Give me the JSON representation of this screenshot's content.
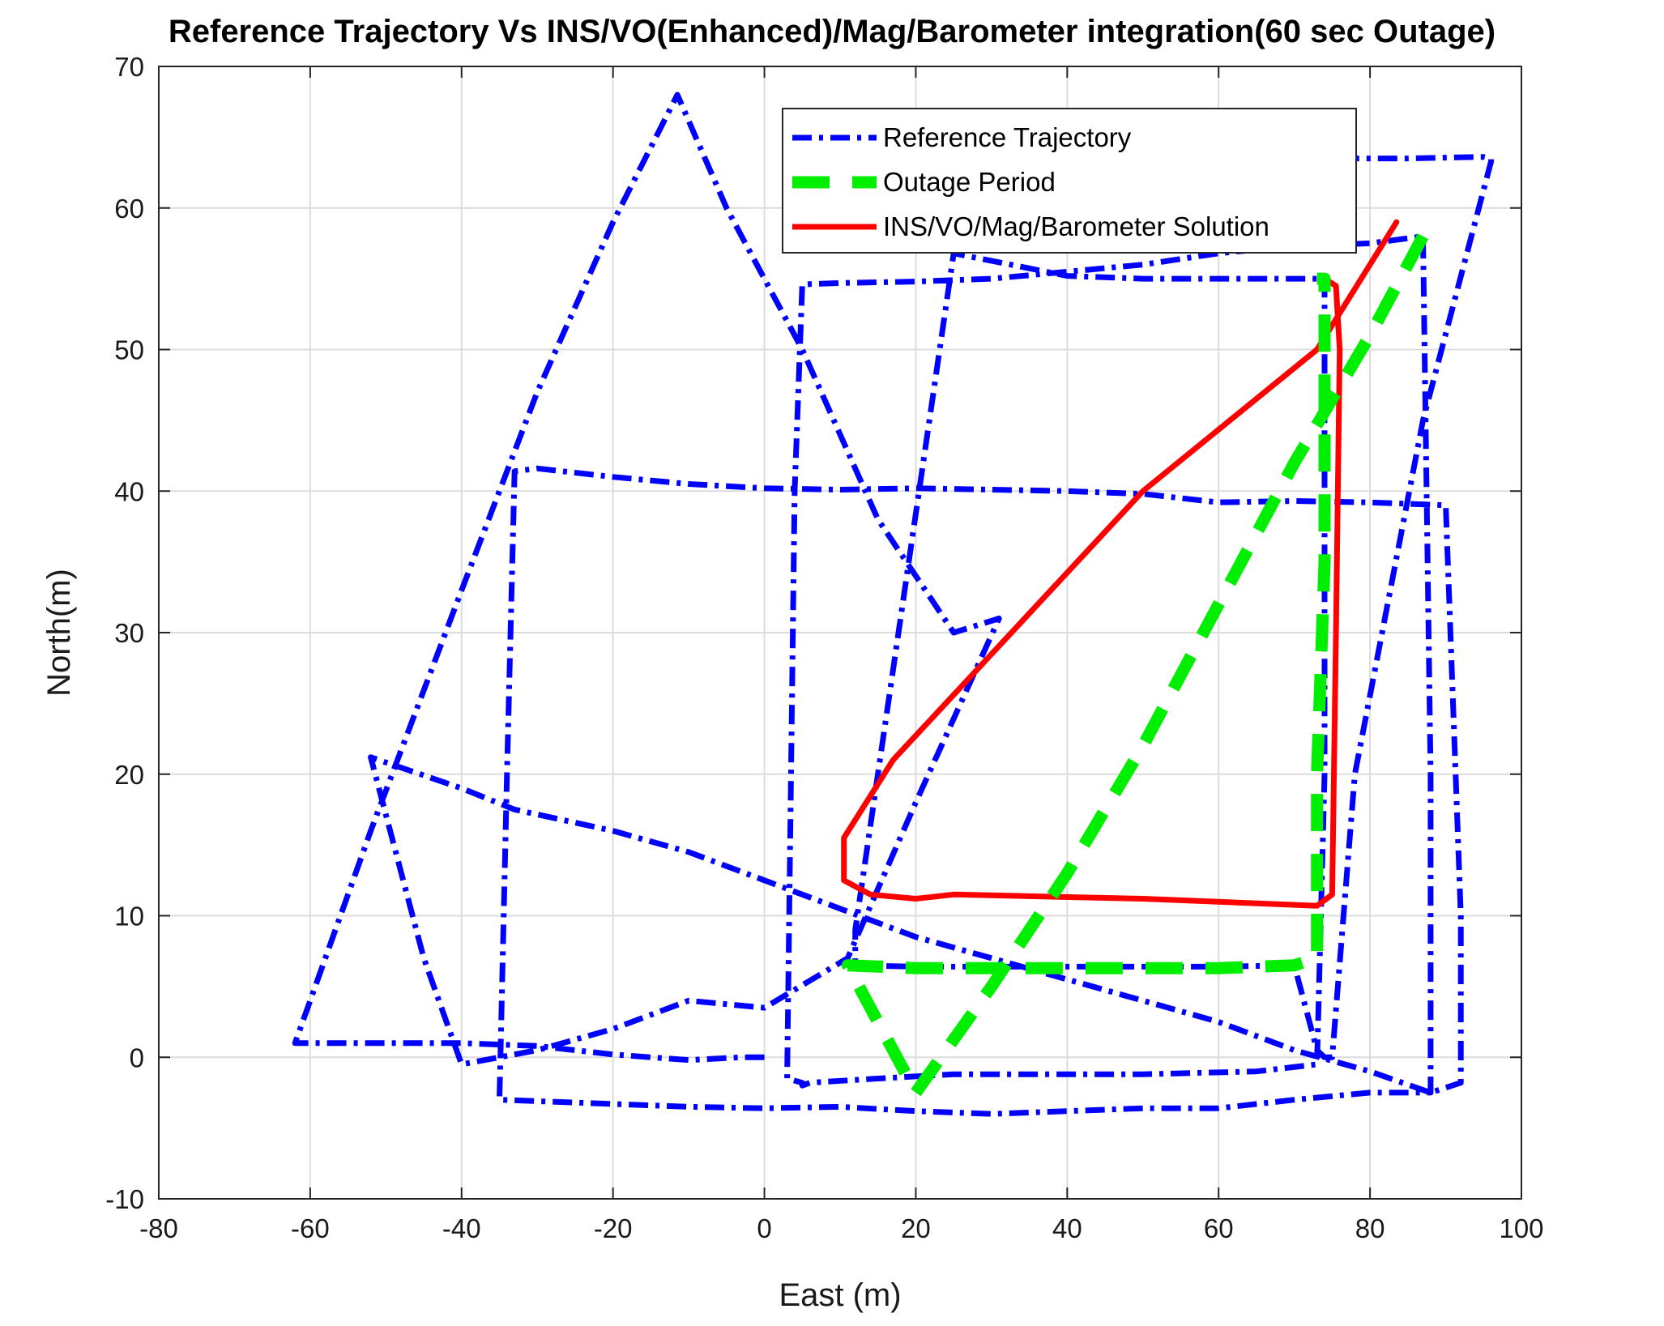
{
  "chart_data": {
    "type": "line",
    "title": "Reference Trajectory Vs INS/VO(Enhanced)/Mag/Barometer integration(60 sec Outage)",
    "xlabel": "East (m)",
    "ylabel": "North(m)",
    "xlim": [
      -80,
      100
    ],
    "ylim": [
      -10,
      70
    ],
    "xticks": [
      -80,
      -60,
      -40,
      -20,
      0,
      20,
      40,
      60,
      80,
      100
    ],
    "yticks": [
      -10,
      0,
      10,
      20,
      30,
      40,
      50,
      60,
      70
    ],
    "grid": true,
    "legend_position": "top-right",
    "series": [
      {
        "name": "Reference Trajectory",
        "color": "#0000ff",
        "style": "dash-dot",
        "x": [
          0,
          -3,
          -10,
          -20,
          -30,
          -40,
          -50,
          -62,
          -52,
          -40,
          -30,
          -20,
          -11.5,
          -5,
          5,
          15,
          25,
          31,
          20,
          11,
          0,
          -10,
          -20,
          -30,
          -40,
          -45,
          -52,
          -40,
          -33,
          -20,
          -10,
          0,
          10,
          20,
          30,
          40,
          50,
          60,
          70,
          80,
          88,
          92,
          92,
          90,
          80,
          70,
          60,
          50,
          40,
          30,
          20,
          10,
          0,
          -10,
          -20,
          -30,
          -35,
          -34,
          -33,
          -20,
          -10,
          0,
          10,
          20,
          30,
          40,
          50,
          60,
          70,
          80,
          88,
          88,
          87,
          80,
          70,
          60,
          50,
          40,
          30,
          20,
          10,
          3,
          3,
          3,
          5,
          5,
          6,
          15,
          25,
          35,
          50,
          65,
          74,
          74,
          74,
          73,
          60,
          50,
          40,
          25,
          12,
          12,
          20,
          30,
          40,
          50,
          60,
          70,
          74,
          78,
          87,
          96,
          96,
          95,
          94,
          85,
          75,
          60,
          50,
          40,
          35,
          30
        ],
        "y": [
          0,
          0,
          -0.2,
          0.2,
          0.8,
          1.0,
          1.0,
          1.0,
          16.0,
          33.0,
          47.0,
          59.0,
          68.0,
          60.0,
          50.0,
          38.0,
          30.0,
          31.0,
          18.0,
          7.0,
          3.5,
          4.0,
          2.0,
          0.5,
          -0.5,
          7.0,
          21.2,
          19.0,
          17.5,
          16.0,
          14.5,
          12.5,
          10.5,
          8.5,
          7.0,
          5.5,
          4.0,
          2.5,
          0.5,
          -1.0,
          -2.5,
          -1.8,
          10.0,
          39.0,
          39.2,
          39.3,
          39.2,
          39.8,
          40.0,
          40.1,
          40.2,
          40.1,
          40.2,
          40.5,
          41.0,
          41.6,
          41.4,
          20.0,
          -3.0,
          -3.3,
          -3.5,
          -3.6,
          -3.5,
          -3.8,
          -4.0,
          -3.8,
          -3.6,
          -3.6,
          -3.0,
          -2.5,
          -2.5,
          20.0,
          58.0,
          57.5,
          57.3,
          56.8,
          56.0,
          55.5,
          55.0,
          54.8,
          54.7,
          54.6,
          40.0,
          -1.5,
          -1.8,
          -2.0,
          -1.8,
          -1.5,
          -1.2,
          -1.2,
          -1.2,
          -1.0,
          -0.5,
          20.0,
          40.0,
          55.0,
          55.0,
          55.0,
          55.0,
          55.2,
          56.8,
          9.0,
          6.5,
          6.4,
          6.4,
          6.4,
          6.4,
          6.4,
          6.5,
          0.5,
          0,
          0,
          20.0,
          45.0,
          63.3,
          63.5,
          63.6,
          63.6,
          63.5,
          63.5,
          63.3,
          63.0
        ],
        "draw_x": [
          0,
          -3,
          -10,
          -20,
          -30,
          -40,
          -50,
          -62,
          -52,
          -40,
          -30,
          -20,
          -11.5,
          -5,
          5,
          15,
          25,
          31,
          20,
          11,
          0,
          -10,
          -20,
          -30,
          -40,
          -45,
          -52,
          -40,
          -33,
          -20,
          -10,
          0,
          10,
          20,
          30,
          40,
          50,
          60,
          70,
          80,
          88,
          92,
          92,
          90,
          80,
          70,
          60,
          50,
          40,
          30,
          20,
          10,
          0,
          -10,
          -20,
          -30,
          -33,
          -34,
          -35,
          -20,
          -10,
          0,
          10,
          20,
          30,
          40,
          50,
          60,
          70,
          80,
          88,
          88,
          87,
          80,
          70,
          60,
          50,
          40,
          30,
          20,
          10,
          5,
          4,
          3,
          5,
          5,
          6,
          15,
          25,
          35,
          50,
          65,
          73,
          74,
          74,
          74,
          72,
          60,
          50,
          40,
          25,
          12,
          12,
          20,
          30,
          40,
          50,
          60,
          70,
          73,
          74,
          75,
          78,
          87,
          96,
          96,
          95,
          94,
          85,
          75,
          60,
          50,
          40,
          35,
          30
        ]
      },
      {
        "name": "Outage Period",
        "color": "#00ee00",
        "style": "dashed",
        "x": [
          87,
          80,
          70,
          60,
          50,
          40,
          30,
          20,
          11,
          11,
          20,
          30,
          40,
          50,
          60,
          70,
          73,
          73,
          74,
          74,
          74,
          73
        ],
        "y": [
          58,
          51,
          42,
          32,
          22,
          13,
          5,
          -2.5,
          6.5,
          6.5,
          6.3,
          6.3,
          6.3,
          6.3,
          6.3,
          6.5,
          7,
          20,
          35,
          50,
          55,
          55
        ]
      },
      {
        "name": "INS/VO/Mag/Barometer Solution",
        "color": "#ff0000",
        "style": "solid",
        "x": [
          83.5,
          73,
          50,
          17,
          10.5,
          10.5,
          14,
          20,
          25,
          50,
          73,
          75,
          75.5,
          76,
          75.5,
          74
        ],
        "y": [
          59,
          50,
          40,
          21,
          15.5,
          12.5,
          11.5,
          11.2,
          11.5,
          11.2,
          10.7,
          11.5,
          30,
          50,
          54.5,
          55
        ]
      }
    ]
  }
}
